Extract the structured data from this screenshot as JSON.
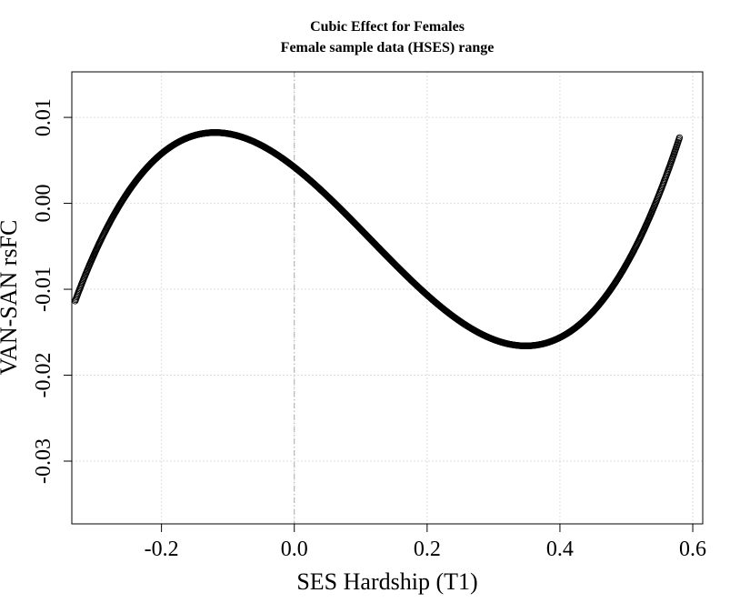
{
  "chart_data": {
    "type": "scatter",
    "title": "Cubic Effect for Females",
    "subtitle": "Female sample data (HSES) range",
    "xlabel": "SES Hardship (T1)",
    "ylabel": "VAN-SAN rsFC",
    "xlim": [
      -0.335,
      0.615
    ],
    "ylim": [
      -0.0373,
      0.0153
    ],
    "x_ticks": [
      -0.2,
      0.0,
      0.2,
      0.4,
      0.6
    ],
    "x_tick_labels": [
      "-0.2",
      "0.0",
      "0.2",
      "0.4",
      "0.6"
    ],
    "y_ticks": [
      -0.03,
      -0.02,
      -0.01,
      0.0,
      0.01
    ],
    "y_tick_labels": [
      "-0.03",
      "-0.02",
      "-0.01",
      "0.00",
      "0.01"
    ],
    "grid": true,
    "reference_line_x": 0.0,
    "series": [
      {
        "x_range": [
          -0.33,
          0.58
        ],
        "cubic_coefficients": [
          0.00421,
          -0.0605,
          -0.1665,
          0.4845
        ],
        "marker": "open-circle",
        "color": "#000000"
      }
    ]
  }
}
